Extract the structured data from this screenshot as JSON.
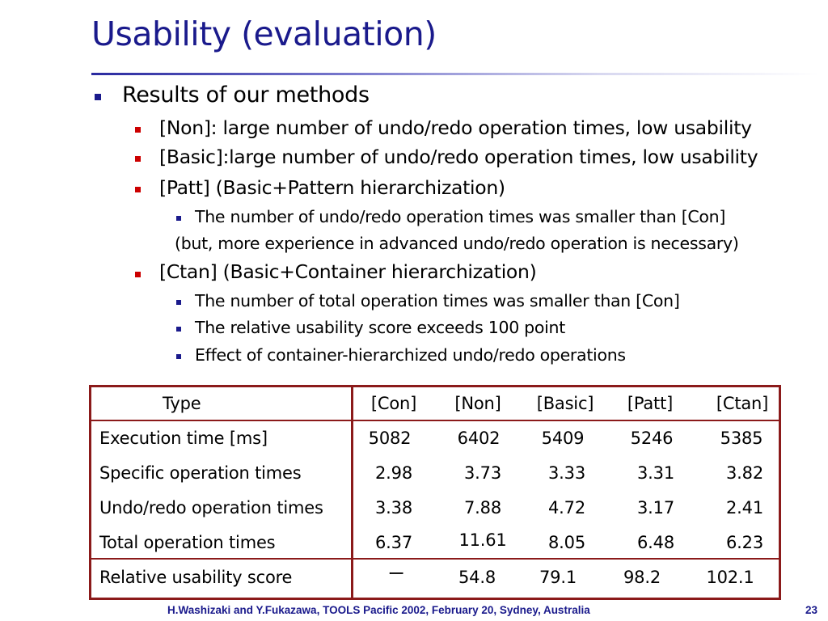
{
  "slide": {
    "title": "Usability (evaluation)",
    "page_number": "23",
    "footer": "H.Washizaki and Y.Fukazawa, TOOLS Pacific 2002, February 20, Sydney, Australia"
  },
  "bullets": {
    "main": "Results of our methods",
    "non": "[Non]: large number of undo/redo operation times, low usability",
    "basic": "[Basic]:large number of undo/redo operation times, low usability",
    "patt": "[Patt] (Basic+Pattern hierarchization)",
    "patt_sub1": "The number of undo/redo operation times was smaller than [Con]",
    "patt_sub2": "(but, more experience in advanced undo/redo operation is necessary)",
    "ctan": "[Ctan] (Basic+Container hierarchization)",
    "ctan_sub1": "The number of total operation times was smaller than [Con]",
    "ctan_sub2": "The relative usability score exceeds 100 point",
    "ctan_sub3": "Effect of container-hierarchized undo/redo operations"
  },
  "table": {
    "type_header": "Type",
    "columns": [
      "[Con]",
      "[Non]",
      "[Basic]",
      "[Patt]",
      "[Ctan]"
    ],
    "rows": [
      {
        "label": "Execution time [ms]",
        "values": [
          "5082",
          "6402",
          "5409",
          "5246",
          "5385"
        ]
      },
      {
        "label": "Specific operation times",
        "values": [
          "2.98",
          "3.73",
          "3.33",
          "3.31",
          "3.82"
        ]
      },
      {
        "label": "Undo/redo operation times",
        "values": [
          "3.38",
          "7.88",
          "4.72",
          "3.17",
          "2.41"
        ]
      },
      {
        "label": "Total operation times",
        "values": [
          "6.37",
          "11.61",
          "8.05",
          "6.48",
          "6.23"
        ]
      },
      {
        "label": "Relative usability score",
        "values": [
          "ー",
          "54.8",
          "79.1",
          "98.2",
          "102.1"
        ]
      }
    ]
  },
  "colors": {
    "title": "#1a1a8c",
    "table_border": "#8b1a1a",
    "bullet_level2": "#cc0000"
  }
}
